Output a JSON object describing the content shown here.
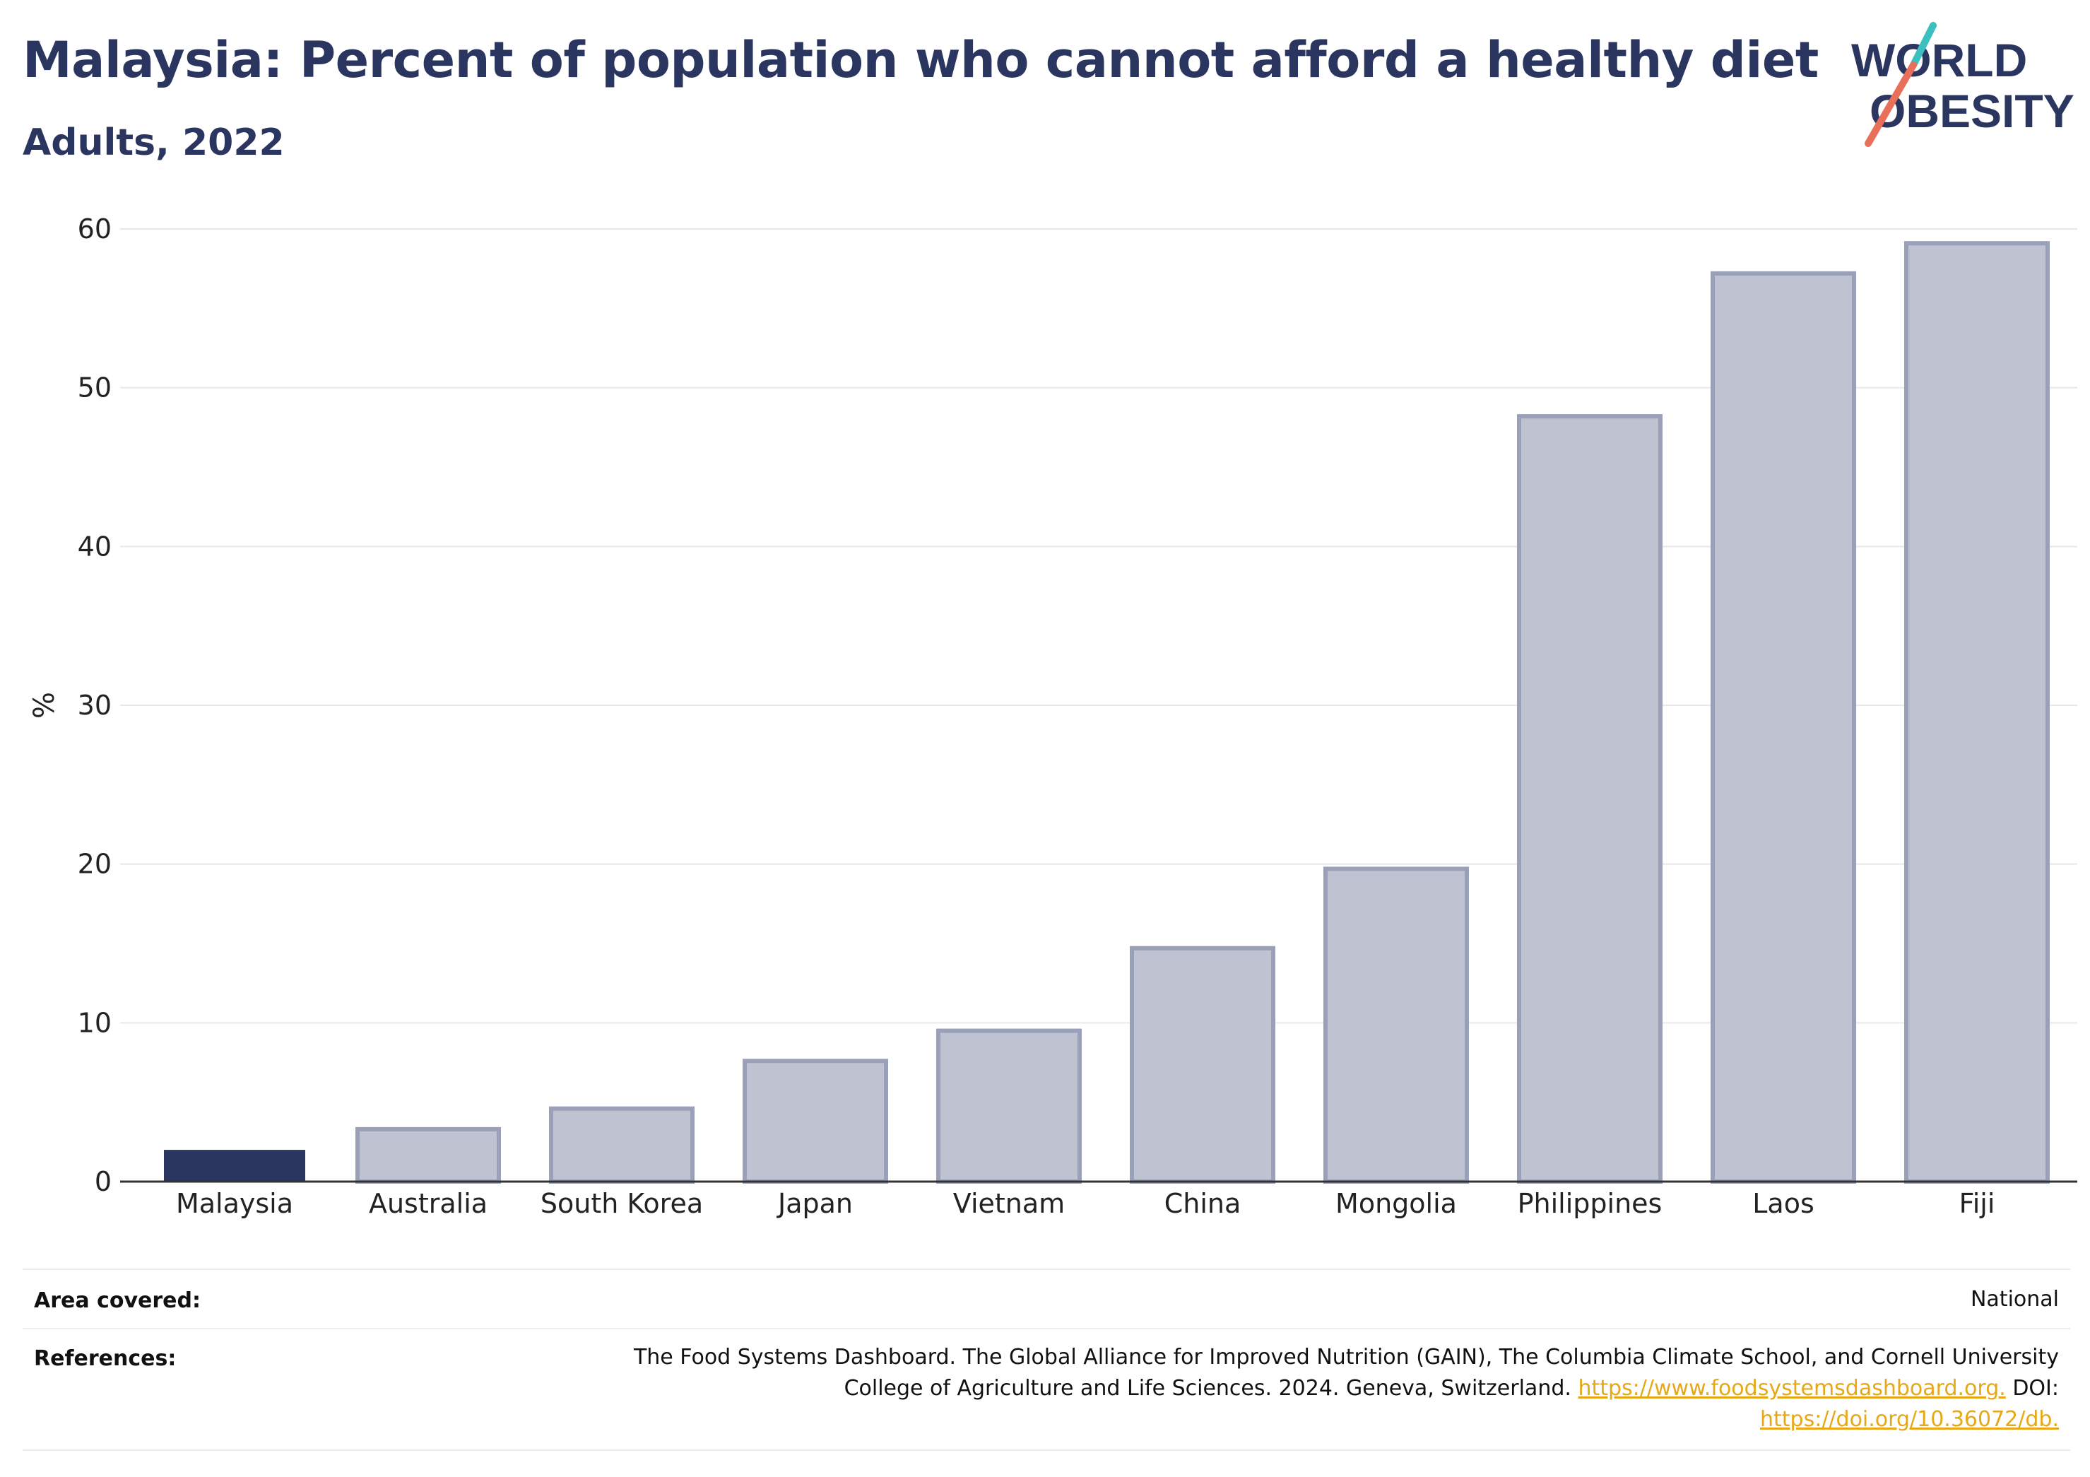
{
  "header": {
    "title": "Malaysia: Percent of population who cannot afford a healthy diet",
    "subtitle": "Adults, 2022"
  },
  "logo": {
    "line1": "WORLD",
    "line2": "OBESITY"
  },
  "colors": {
    "highlight": "#2b3660",
    "bar_fill": "#bfc2d0",
    "bar_stroke": "#9aa0b8",
    "slash_teal": "#3bbfbf",
    "slash_coral": "#e8705a",
    "link": "#e6a817"
  },
  "chart_data": {
    "type": "bar",
    "title": "Malaysia: Percent of population who cannot afford a healthy diet",
    "subtitle": "Adults, 2022",
    "categories": [
      "Malaysia",
      "Australia",
      "South Korea",
      "Japan",
      "Vietnam",
      "China",
      "Mongolia",
      "Philippines",
      "Laos",
      "Fiji"
    ],
    "values": [
      2.0,
      3.3,
      4.6,
      7.6,
      9.5,
      14.7,
      19.7,
      48.2,
      57.2,
      59.1
    ],
    "highlight": "Malaysia",
    "ylabel": "%",
    "xlabel": "",
    "ylim": [
      0,
      60
    ],
    "yticks": [
      0,
      10,
      20,
      30,
      40,
      50,
      60
    ],
    "grid": true
  },
  "info": {
    "area_label": "Area covered:",
    "area_value": "National",
    "references_label": "References:",
    "references_line1": "The Food Systems Dashboard. The Global Alliance for Improved Nutrition (GAIN), The Columbia Climate School, and Cornell University",
    "references_line2": "College of Agriculture and Life Sciences. 2024. Geneva, Switzerland.",
    "references_link1": "https://www.foodsystemsdashboard.org.",
    "references_doi_label": "DOI:",
    "references_link2": "https://doi.org/10.36072/db."
  }
}
